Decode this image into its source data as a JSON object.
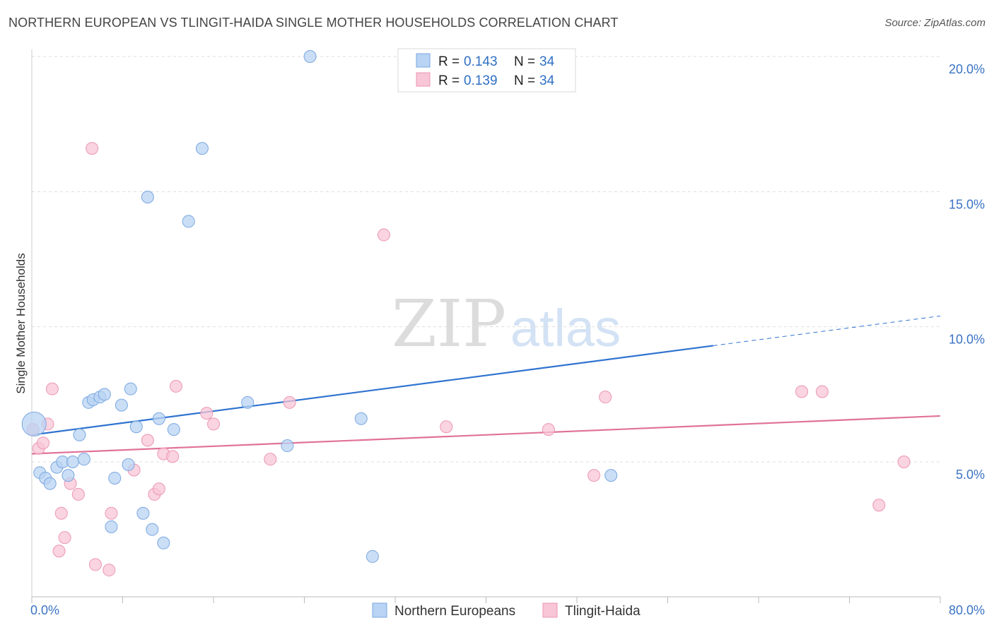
{
  "header": {
    "title": "NORTHERN EUROPEAN VS TLINGIT-HAIDA SINGLE MOTHER HOUSEHOLDS CORRELATION CHART",
    "source": "Source: ZipAtlas.com"
  },
  "watermark": {
    "zip": "ZIP",
    "atlas": "atlas"
  },
  "colors": {
    "blue_fill": "#b8d3f3",
    "blue_stroke": "#7aa7e0",
    "blue_line": "#2f73d0",
    "pink_fill": "#f8c6d6",
    "pink_stroke": "#eb97b3",
    "pink_line": "#e0729a",
    "tick_text": "#3b73c4"
  },
  "legend": {
    "rows": [
      {
        "r_label": "R =",
        "r_value": "0.143",
        "n_label": "N =",
        "n_value": "34"
      },
      {
        "r_label": "R =",
        "r_value": "0.139",
        "n_label": "N =",
        "n_value": "34"
      }
    ]
  },
  "chart_data": {
    "type": "scatter",
    "title": "NORTHERN EUROPEAN VS TLINGIT-HAIDA SINGLE MOTHER HOUSEHOLDS CORRELATION CHART",
    "xlabel": "",
    "ylabel": "Single Mother Households",
    "xlim": [
      0,
      80
    ],
    "ylim": [
      0,
      20.5
    ],
    "x_tick_labels": [
      "0.0%",
      "80.0%"
    ],
    "y_ticks": [
      5,
      10,
      15,
      20
    ],
    "y_tick_labels": [
      "5.0%",
      "10.0%",
      "15.0%",
      "20.0%"
    ],
    "grid": true,
    "legend_position": "top-center",
    "series": [
      {
        "name": "Northern Europeans",
        "trend": {
          "x": [
            0,
            60
          ],
          "y": [
            6.0,
            9.3
          ],
          "dashed_to": [
            80,
            10.4
          ]
        },
        "points": [
          {
            "x": 0.2,
            "y": 6.4,
            "big": true
          },
          {
            "x": 0.7,
            "y": 4.6
          },
          {
            "x": 1.2,
            "y": 4.4
          },
          {
            "x": 1.6,
            "y": 4.2
          },
          {
            "x": 2.2,
            "y": 4.8
          },
          {
            "x": 2.7,
            "y": 5.0
          },
          {
            "x": 3.2,
            "y": 4.5
          },
          {
            "x": 3.6,
            "y": 5.0
          },
          {
            "x": 4.2,
            "y": 6.0
          },
          {
            "x": 4.6,
            "y": 5.1
          },
          {
            "x": 5.0,
            "y": 7.2
          },
          {
            "x": 5.4,
            "y": 7.3
          },
          {
            "x": 6.0,
            "y": 7.4
          },
          {
            "x": 6.4,
            "y": 7.5
          },
          {
            "x": 7.0,
            "y": 2.6
          },
          {
            "x": 7.3,
            "y": 4.4
          },
          {
            "x": 7.9,
            "y": 7.1
          },
          {
            "x": 8.5,
            "y": 4.9
          },
          {
            "x": 8.7,
            "y": 7.7
          },
          {
            "x": 9.2,
            "y": 6.3
          },
          {
            "x": 9.8,
            "y": 3.1
          },
          {
            "x": 10.2,
            "y": 14.8
          },
          {
            "x": 10.6,
            "y": 2.5
          },
          {
            "x": 11.2,
            "y": 6.6
          },
          {
            "x": 11.6,
            "y": 2.0
          },
          {
            "x": 12.5,
            "y": 6.2
          },
          {
            "x": 13.8,
            "y": 13.9
          },
          {
            "x": 15.0,
            "y": 16.6
          },
          {
            "x": 19.0,
            "y": 7.2
          },
          {
            "x": 22.5,
            "y": 5.6
          },
          {
            "x": 24.5,
            "y": 20.0
          },
          {
            "x": 29.0,
            "y": 6.6
          },
          {
            "x": 30.0,
            "y": 1.5
          },
          {
            "x": 51.0,
            "y": 4.5
          }
        ]
      },
      {
        "name": "Tlingit-Haida",
        "trend": {
          "x": [
            0,
            80
          ],
          "y": [
            5.3,
            6.7
          ]
        },
        "points": [
          {
            "x": 0.1,
            "y": 6.2
          },
          {
            "x": 0.6,
            "y": 5.5
          },
          {
            "x": 1.0,
            "y": 5.7
          },
          {
            "x": 1.4,
            "y": 6.4
          },
          {
            "x": 1.8,
            "y": 7.7
          },
          {
            "x": 2.4,
            "y": 1.7
          },
          {
            "x": 2.6,
            "y": 3.1
          },
          {
            "x": 2.9,
            "y": 2.2
          },
          {
            "x": 3.4,
            "y": 4.2
          },
          {
            "x": 4.1,
            "y": 3.8
          },
          {
            "x": 5.3,
            "y": 16.6
          },
          {
            "x": 5.6,
            "y": 1.2
          },
          {
            "x": 6.8,
            "y": 1.0
          },
          {
            "x": 7.0,
            "y": 3.1
          },
          {
            "x": 9.0,
            "y": 4.7
          },
          {
            "x": 10.2,
            "y": 5.8
          },
          {
            "x": 10.8,
            "y": 3.8
          },
          {
            "x": 11.2,
            "y": 4.0
          },
          {
            "x": 11.6,
            "y": 5.3
          },
          {
            "x": 12.4,
            "y": 5.2
          },
          {
            "x": 12.7,
            "y": 7.8
          },
          {
            "x": 15.4,
            "y": 6.8
          },
          {
            "x": 16.0,
            "y": 6.4
          },
          {
            "x": 21.0,
            "y": 5.1
          },
          {
            "x": 22.7,
            "y": 7.2
          },
          {
            "x": 31.0,
            "y": 13.4
          },
          {
            "x": 36.5,
            "y": 6.3
          },
          {
            "x": 45.5,
            "y": 6.2
          },
          {
            "x": 49.5,
            "y": 4.5
          },
          {
            "x": 50.5,
            "y": 7.4
          },
          {
            "x": 67.8,
            "y": 7.6
          },
          {
            "x": 69.6,
            "y": 7.6
          },
          {
            "x": 74.6,
            "y": 3.4
          },
          {
            "x": 76.8,
            "y": 5.0
          }
        ]
      }
    ]
  }
}
